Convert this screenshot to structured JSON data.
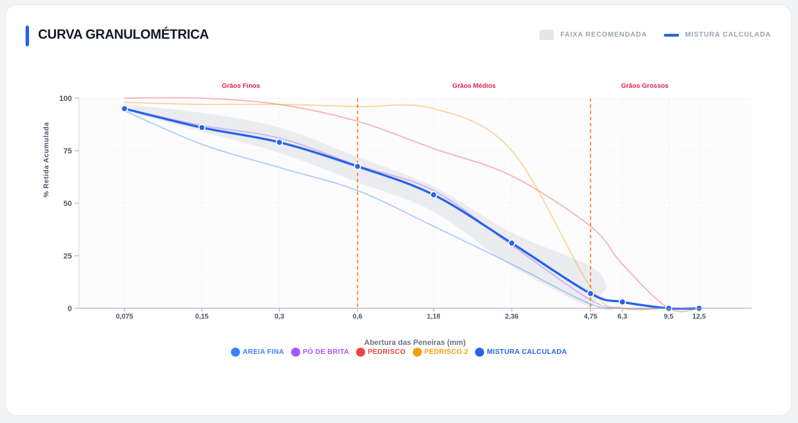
{
  "header": {
    "title": "CURVA GRANULOMÉTRICA",
    "legend_band": "FAIXA RECOMENDADA",
    "legend_line": "MISTURA CALCULADA"
  },
  "colors": {
    "accent": "#2563eb",
    "band": "#e5e7eb",
    "areia": "#3b82f6",
    "po": "#a855f7",
    "pedrisco": "#ef4444",
    "pedrisco2": "#f59e0b",
    "zone": "#e11d48",
    "divider": "#f97316"
  },
  "chart_data": {
    "type": "line",
    "ylabel": "% Retida Acumulada",
    "xlabel": "Abertura das Peneiras (mm)",
    "ylim": [
      0,
      100
    ],
    "y_ticks": [
      "0",
      "25",
      "50",
      "75",
      "100"
    ],
    "categories": [
      "0,075",
      "0,15",
      "0,3",
      "0,6",
      "1,18",
      "2,36",
      "4,75",
      "6,3",
      "9,5",
      "12,5"
    ],
    "zones": [
      {
        "label": "Grãos Finos",
        "from": "0,075",
        "to": "0,6"
      },
      {
        "label": "Grãos Médios",
        "from": "0,6",
        "to": "4,75"
      },
      {
        "label": "Grãos Grossos",
        "from": "4,75",
        "to": "12,5"
      }
    ],
    "dividers": [
      "0,6",
      "4,75"
    ],
    "band": {
      "name": "FAIXA RECOMENDADA",
      "upper": [
        {
          "x": "0,075",
          "y": 97
        },
        {
          "x": "0,15",
          "y": 93
        },
        {
          "x": "0,3",
          "y": 86
        },
        {
          "x": "0,6",
          "y": 72
        },
        {
          "x": "1,18",
          "y": 58
        },
        {
          "x": "2,36",
          "y": 36
        },
        {
          "x": "4,75",
          "y": 20
        },
        {
          "x": "4,75+",
          "y": 10
        }
      ],
      "lower": [
        {
          "x": "0,075",
          "y": 94
        },
        {
          "x": "0,15",
          "y": 84
        },
        {
          "x": "0,3",
          "y": 74
        },
        {
          "x": "0,6",
          "y": 60
        },
        {
          "x": "1,18",
          "y": 46
        },
        {
          "x": "2,36",
          "y": 20
        },
        {
          "x": "4,75",
          "y": 0
        }
      ]
    },
    "series": [
      {
        "name": "AREIA FINA",
        "color_key": "areia",
        "values": [
          94,
          78,
          67,
          56,
          39,
          21,
          2,
          0,
          0,
          0
        ]
      },
      {
        "name": "PÓ DE BRITA",
        "color_key": "po",
        "values": [
          95,
          87,
          81,
          68,
          56,
          30,
          4,
          0,
          0,
          0
        ]
      },
      {
        "name": "PEDRISCO",
        "color_key": "pedrisco",
        "values": [
          100,
          100,
          97,
          89,
          76,
          63,
          39,
          21,
          0,
          0
        ]
      },
      {
        "name": "PEDRISCO 2",
        "color_key": "pedrisco2",
        "values": [
          98,
          97,
          97,
          96,
          95,
          75,
          10,
          0,
          0,
          0
        ]
      },
      {
        "name": "MISTURA CALCULADA",
        "color_key": "accent",
        "values": [
          95,
          86,
          79,
          67.5,
          54,
          31,
          7,
          3,
          0,
          0
        ]
      }
    ]
  },
  "legend": {
    "items": [
      {
        "label": "AREIA FINA",
        "color": "#3b82f6"
      },
      {
        "label": "PÓ DE BRITA",
        "color": "#a855f7"
      },
      {
        "label": "PEDRISCO",
        "color": "#ef4444"
      },
      {
        "label": "PEDRISCO 2",
        "color": "#f59e0b"
      },
      {
        "label": "MISTURA CALCULADA",
        "color": "#2563eb"
      }
    ]
  }
}
